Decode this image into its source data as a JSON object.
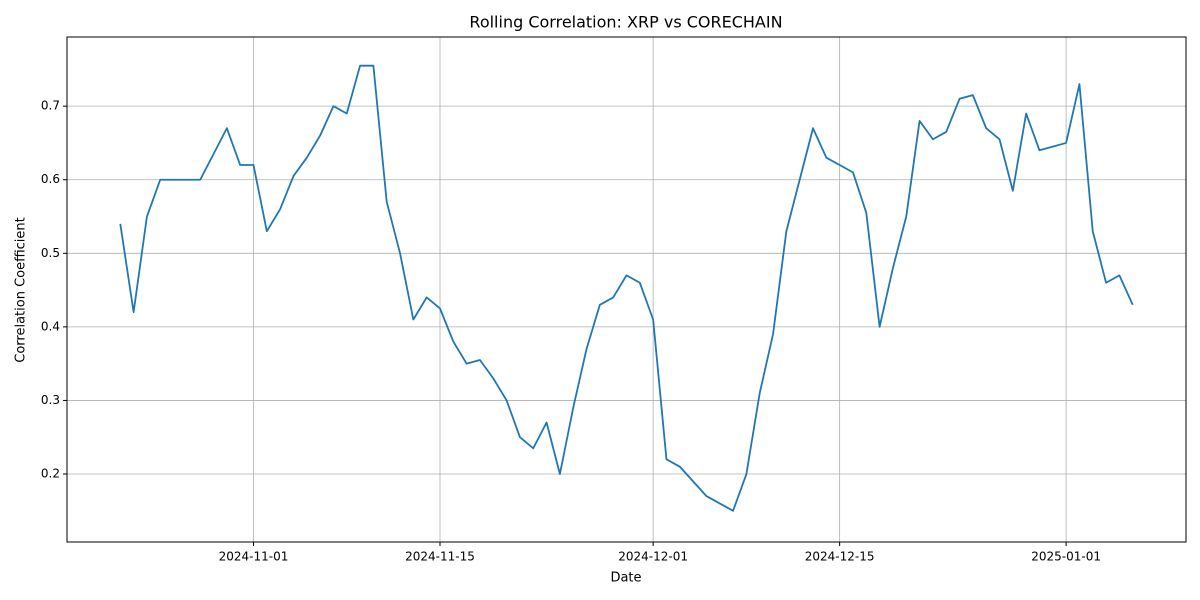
{
  "chart_data": {
    "type": "line",
    "title": "Rolling Correlation: XRP vs CORECHAIN",
    "x_label": "Date",
    "y_label": "Correlation Coefficient",
    "x": [
      "2024-10-22",
      "2024-10-23",
      "2024-10-24",
      "2024-10-25",
      "2024-10-26",
      "2024-10-27",
      "2024-10-28",
      "2024-10-29",
      "2024-10-30",
      "2024-10-31",
      "2024-11-01",
      "2024-11-02",
      "2024-11-03",
      "2024-11-04",
      "2024-11-05",
      "2024-11-06",
      "2024-11-07",
      "2024-11-08",
      "2024-11-09",
      "2024-11-10",
      "2024-11-11",
      "2024-11-12",
      "2024-11-13",
      "2024-11-14",
      "2024-11-15",
      "2024-11-16",
      "2024-11-17",
      "2024-11-18",
      "2024-11-19",
      "2024-11-20",
      "2024-11-21",
      "2024-11-22",
      "2024-11-23",
      "2024-11-24",
      "2024-11-25",
      "2024-11-26",
      "2024-11-27",
      "2024-11-28",
      "2024-11-29",
      "2024-11-30",
      "2024-12-01",
      "2024-12-02",
      "2024-12-03",
      "2024-12-04",
      "2024-12-05",
      "2024-12-06",
      "2024-12-07",
      "2024-12-08",
      "2024-12-09",
      "2024-12-10",
      "2024-12-11",
      "2024-12-12",
      "2024-12-13",
      "2024-12-14",
      "2024-12-15",
      "2024-12-16",
      "2024-12-17",
      "2024-12-18",
      "2024-12-19",
      "2024-12-20",
      "2024-12-21",
      "2024-12-22",
      "2024-12-23",
      "2024-12-24",
      "2024-12-25",
      "2024-12-26",
      "2024-12-27",
      "2024-12-28",
      "2024-12-29",
      "2024-12-30",
      "2024-12-31",
      "2025-01-01",
      "2025-01-02",
      "2025-01-03",
      "2025-01-04",
      "2025-01-05",
      "2025-01-06"
    ],
    "series": [
      {
        "name": "Rolling Correlation",
        "color": "#1f77b4",
        "values": [
          0.54,
          0.42,
          0.55,
          0.6,
          0.6,
          0.6,
          0.6,
          0.635,
          0.67,
          0.62,
          0.62,
          0.53,
          0.56,
          0.605,
          0.63,
          0.66,
          0.7,
          0.69,
          0.755,
          0.755,
          0.57,
          0.5,
          0.41,
          0.44,
          0.425,
          0.38,
          0.35,
          0.355,
          0.33,
          0.3,
          0.25,
          0.235,
          0.27,
          0.2,
          0.29,
          0.37,
          0.43,
          0.44,
          0.47,
          0.46,
          0.41,
          0.22,
          0.21,
          0.19,
          0.17,
          0.16,
          0.15,
          0.2,
          0.31,
          0.39,
          0.53,
          0.6,
          0.67,
          0.63,
          0.62,
          0.61,
          0.555,
          0.4,
          0.48,
          0.55,
          0.68,
          0.655,
          0.665,
          0.71,
          0.715,
          0.67,
          0.655,
          0.585,
          0.69,
          0.64,
          0.645,
          0.65,
          0.73,
          0.53,
          0.46,
          0.47,
          0.43
        ]
      }
    ],
    "xlim": [
      "2024-10-18",
      "2025-01-10"
    ],
    "xticks": [
      "2024-11-01",
      "2024-11-15",
      "2024-12-01",
      "2024-12-15",
      "2025-01-01"
    ],
    "ylim": [
      0.1076,
      0.794
    ],
    "yticks": [
      0.2,
      0.3,
      0.4,
      0.5,
      0.6,
      0.7
    ],
    "grid": true
  }
}
